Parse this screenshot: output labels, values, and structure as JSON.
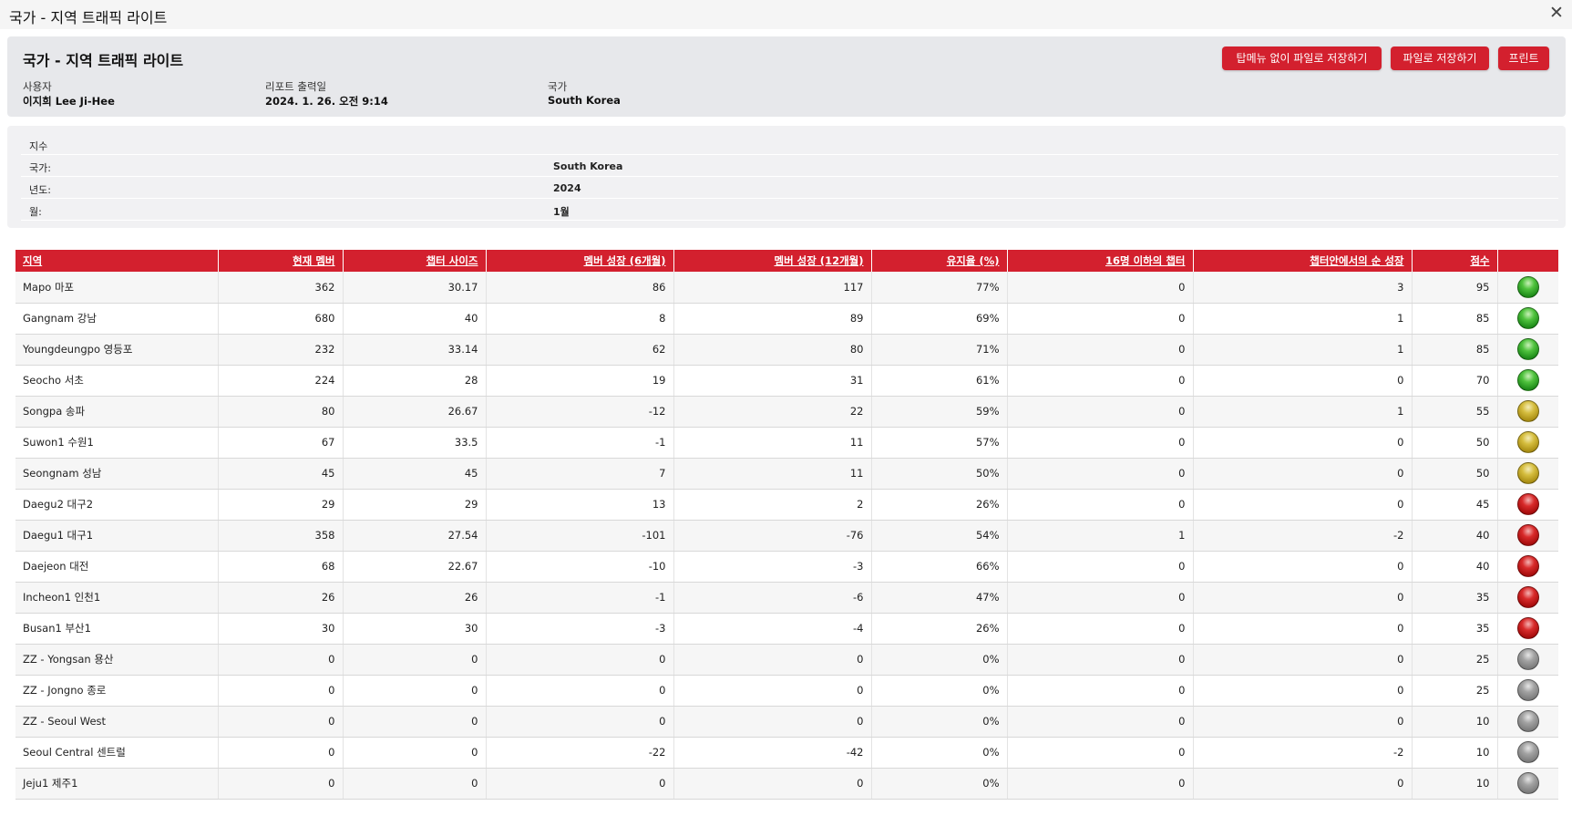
{
  "window": {
    "title": "국가 - 지역 트래픽 라이트",
    "close_glyph": "✕"
  },
  "report": {
    "title": "국가 - 지역 트래픽 라이트",
    "user_label": "사용자",
    "user_value": "이지희 Lee Ji-Hee",
    "date_label": "리포트 출력일",
    "date_value": "2024. 1. 26. 오전 9:14",
    "country_label": "국가",
    "country_value": "South Korea"
  },
  "buttons": {
    "save_no_menu": "탑메뉴 없이 파일로 저장하기",
    "save": "파일로 저장하기",
    "print": "프린트"
  },
  "filters": {
    "heading": "지수",
    "rows": [
      {
        "label": "국가:",
        "value": "South Korea"
      },
      {
        "label": "년도:",
        "value": "2024"
      },
      {
        "label": "월:",
        "value": "1월"
      }
    ]
  },
  "table": {
    "columns": [
      "지역",
      "현재 멤버",
      "챕터 사이즈",
      "멤버 성장 (6개월)",
      "멤버 성장 (12개월)",
      "유지율 (%)",
      "16명 이하의 챕터",
      "챕터안에서의 순 성장",
      "점수",
      ""
    ],
    "rows": [
      {
        "region": "Mapo 마포",
        "members": "362",
        "chapter_size": "30.17",
        "growth6": "86",
        "growth12": "117",
        "retention": "77%",
        "small_chapters": "0",
        "net_growth": "3",
        "score": "95",
        "light": "green"
      },
      {
        "region": "Gangnam 강남",
        "members": "680",
        "chapter_size": "40",
        "growth6": "8",
        "growth12": "89",
        "retention": "69%",
        "small_chapters": "0",
        "net_growth": "1",
        "score": "85",
        "light": "green"
      },
      {
        "region": "Youngdeungpo 영등포",
        "members": "232",
        "chapter_size": "33.14",
        "growth6": "62",
        "growth12": "80",
        "retention": "71%",
        "small_chapters": "0",
        "net_growth": "1",
        "score": "85",
        "light": "green"
      },
      {
        "region": "Seocho 서초",
        "members": "224",
        "chapter_size": "28",
        "growth6": "19",
        "growth12": "31",
        "retention": "61%",
        "small_chapters": "0",
        "net_growth": "0",
        "score": "70",
        "light": "green"
      },
      {
        "region": "Songpa 송파",
        "members": "80",
        "chapter_size": "26.67",
        "growth6": "-12",
        "growth12": "22",
        "retention": "59%",
        "small_chapters": "0",
        "net_growth": "1",
        "score": "55",
        "light": "yellow"
      },
      {
        "region": "Suwon1 수원1",
        "members": "67",
        "chapter_size": "33.5",
        "growth6": "-1",
        "growth12": "11",
        "retention": "57%",
        "small_chapters": "0",
        "net_growth": "0",
        "score": "50",
        "light": "yellow"
      },
      {
        "region": "Seongnam 성남",
        "members": "45",
        "chapter_size": "45",
        "growth6": "7",
        "growth12": "11",
        "retention": "50%",
        "small_chapters": "0",
        "net_growth": "0",
        "score": "50",
        "light": "yellow"
      },
      {
        "region": "Daegu2 대구2",
        "members": "29",
        "chapter_size": "29",
        "growth6": "13",
        "growth12": "2",
        "retention": "26%",
        "small_chapters": "0",
        "net_growth": "0",
        "score": "45",
        "light": "red"
      },
      {
        "region": "Daegu1 대구1",
        "members": "358",
        "chapter_size": "27.54",
        "growth6": "-101",
        "growth12": "-76",
        "retention": "54%",
        "small_chapters": "1",
        "net_growth": "-2",
        "score": "40",
        "light": "red"
      },
      {
        "region": "Daejeon 대전",
        "members": "68",
        "chapter_size": "22.67",
        "growth6": "-10",
        "growth12": "-3",
        "retention": "66%",
        "small_chapters": "0",
        "net_growth": "0",
        "score": "40",
        "light": "red"
      },
      {
        "region": "Incheon1 인천1",
        "members": "26",
        "chapter_size": "26",
        "growth6": "-1",
        "growth12": "-6",
        "retention": "47%",
        "small_chapters": "0",
        "net_growth": "0",
        "score": "35",
        "light": "red"
      },
      {
        "region": "Busan1 부산1",
        "members": "30",
        "chapter_size": "30",
        "growth6": "-3",
        "growth12": "-4",
        "retention": "26%",
        "small_chapters": "0",
        "net_growth": "0",
        "score": "35",
        "light": "red"
      },
      {
        "region": "ZZ - Yongsan 용산",
        "members": "0",
        "chapter_size": "0",
        "growth6": "0",
        "growth12": "0",
        "retention": "0%",
        "small_chapters": "0",
        "net_growth": "0",
        "score": "25",
        "light": "gray"
      },
      {
        "region": "ZZ - Jongno 종로",
        "members": "0",
        "chapter_size": "0",
        "growth6": "0",
        "growth12": "0",
        "retention": "0%",
        "small_chapters": "0",
        "net_growth": "0",
        "score": "25",
        "light": "gray"
      },
      {
        "region": "ZZ - Seoul West",
        "members": "0",
        "chapter_size": "0",
        "growth6": "0",
        "growth12": "0",
        "retention": "0%",
        "small_chapters": "0",
        "net_growth": "0",
        "score": "10",
        "light": "gray"
      },
      {
        "region": "Seoul Central 센트럴",
        "members": "0",
        "chapter_size": "0",
        "growth6": "-22",
        "growth12": "-42",
        "retention": "0%",
        "small_chapters": "0",
        "net_growth": "-2",
        "score": "10",
        "light": "gray"
      },
      {
        "region": "Jeju1 제주1",
        "members": "0",
        "chapter_size": "0",
        "growth6": "0",
        "growth12": "0",
        "retention": "0%",
        "small_chapters": "0",
        "net_growth": "0",
        "score": "10",
        "light": "gray"
      }
    ]
  },
  "colors": {
    "accent": "#d3202e",
    "light_green": "#2fa526",
    "light_yellow": "#c2a82a",
    "light_red": "#c01616",
    "light_gray": "#8c8c8c"
  }
}
